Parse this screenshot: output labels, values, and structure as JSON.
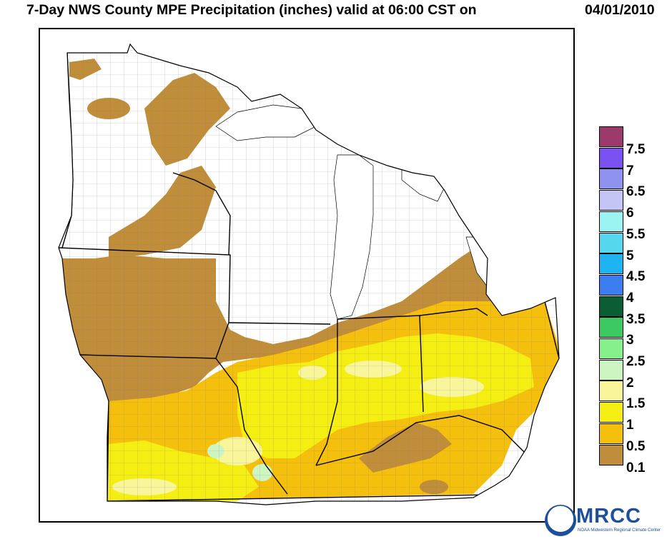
{
  "header": {
    "title": "7-Day NWS County MPE Precipitation (inches) valid at 06:00 CST on",
    "date": "04/01/2010"
  },
  "legend": {
    "items": [
      {
        "label": "7.5",
        "color": "#9c3a6c"
      },
      {
        "label": "7",
        "color": "#7a52f2"
      },
      {
        "label": "6.5",
        "color": "#8f92ee"
      },
      {
        "label": "6",
        "color": "#c5c5f5"
      },
      {
        "label": "5.5",
        "color": "#9cf4f2"
      },
      {
        "label": "5",
        "color": "#55d8ee"
      },
      {
        "label": "4.5",
        "color": "#1eb3f2"
      },
      {
        "label": "4",
        "color": "#3c7ef2"
      },
      {
        "label": "3.5",
        "color": "#0b5e33"
      },
      {
        "label": "3",
        "color": "#3cc961"
      },
      {
        "label": "2.5",
        "color": "#86f08a"
      },
      {
        "label": "2",
        "color": "#cdf5c2"
      },
      {
        "label": "1.5",
        "color": "#f8f59a"
      },
      {
        "label": "1",
        "color": "#f5ee12"
      },
      {
        "label": "0.5",
        "color": "#f4bf0d"
      },
      {
        "label": "0.1",
        "color": "#c08d3a"
      }
    ]
  },
  "logo": {
    "text": "MRCC",
    "subtitle": "NOAA Midwestern Regional Climate Center"
  },
  "map_colors": {
    "land": "#ffffff",
    "county_lines": "#777777",
    "state_lines": "#000000",
    "water": "#ffffff"
  }
}
